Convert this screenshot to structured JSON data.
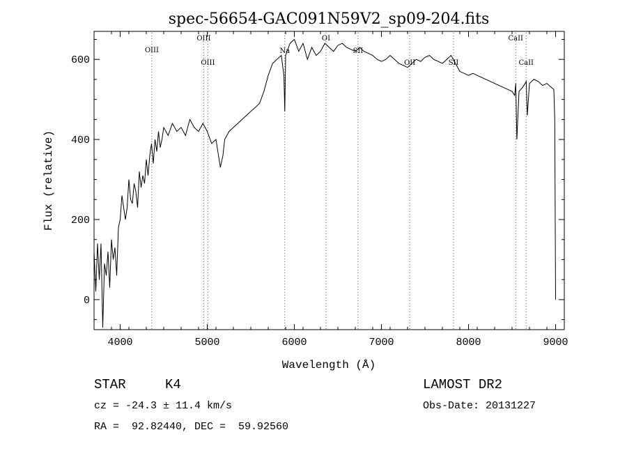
{
  "chart_data": {
    "type": "line",
    "title": "spec-56654-GAC091N59V2_sp09-204.fits",
    "xlabel": "Wavelength (Å)",
    "ylabel": "Flux (relative)",
    "xlim": [
      3700,
      9100
    ],
    "ylim": [
      -75,
      670
    ],
    "xticks": [
      4000,
      5000,
      6000,
      7000,
      8000,
      9000
    ],
    "xtick_labels": [
      "4000",
      "5000",
      "6000",
      "7000",
      "8000",
      "9000"
    ],
    "yticks": [
      0,
      200,
      400,
      600
    ],
    "ytick_labels": [
      "0",
      "200",
      "400",
      "600"
    ],
    "grid": false,
    "legend": "none",
    "series": [
      {
        "x": [
          3700,
          3720,
          3740,
          3760,
          3780,
          3800,
          3820,
          3840,
          3860,
          3880,
          3900,
          3920,
          3940,
          3960,
          3980,
          4000,
          4020,
          4040,
          4060,
          4080,
          4100,
          4120,
          4140,
          4160,
          4180,
          4200,
          4220,
          4240,
          4260,
          4280,
          4300,
          4320,
          4340,
          4360,
          4380,
          4400,
          4420,
          4440,
          4460,
          4480,
          4500,
          4550,
          4600,
          4650,
          4700,
          4750,
          4800,
          4850,
          4900,
          4950,
          5000,
          5050,
          5100,
          5150,
          5180,
          5200,
          5250,
          5300,
          5350,
          5400,
          5450,
          5500,
          5550,
          5600,
          5650,
          5700,
          5750,
          5800,
          5850,
          5880,
          5890,
          5900,
          5950,
          6000,
          6050,
          6100,
          6150,
          6200,
          6250,
          6300,
          6350,
          6400,
          6450,
          6500,
          6550,
          6600,
          6650,
          6700,
          6750,
          6800,
          6850,
          6900,
          6950,
          7000,
          7050,
          7100,
          7150,
          7200,
          7250,
          7300,
          7350,
          7400,
          7450,
          7500,
          7550,
          7600,
          7650,
          7700,
          7750,
          7800,
          7850,
          7900,
          7950,
          8000,
          8050,
          8100,
          8150,
          8200,
          8250,
          8300,
          8350,
          8400,
          8450,
          8500,
          8530,
          8542,
          8555,
          8580,
          8620,
          8650,
          8662,
          8675,
          8700,
          8750,
          8800,
          8850,
          8900,
          8950,
          8980,
          8990,
          9000
        ],
        "y": [
          120,
          20,
          140,
          50,
          140,
          -70,
          90,
          60,
          120,
          30,
          150,
          100,
          130,
          60,
          180,
          200,
          260,
          230,
          200,
          230,
          300,
          250,
          240,
          290,
          270,
          230,
          320,
          280,
          310,
          290,
          350,
          310,
          360,
          390,
          340,
          400,
          370,
          420,
          380,
          400,
          430,
          410,
          440,
          420,
          430,
          410,
          450,
          430,
          420,
          440,
          420,
          390,
          400,
          330,
          360,
          400,
          420,
          430,
          440,
          450,
          460,
          470,
          480,
          490,
          520,
          560,
          590,
          600,
          610,
          560,
          470,
          610,
          640,
          650,
          620,
          640,
          600,
          630,
          610,
          620,
          640,
          630,
          620,
          635,
          640,
          630,
          625,
          620,
          630,
          620,
          615,
          610,
          600,
          595,
          600,
          610,
          600,
          590,
          585,
          580,
          590,
          600,
          595,
          605,
          610,
          600,
          595,
          590,
          600,
          610,
          590,
          570,
          565,
          560,
          565,
          560,
          555,
          550,
          545,
          540,
          535,
          530,
          525,
          520,
          510,
          540,
          400,
          520,
          530,
          540,
          545,
          460,
          540,
          550,
          545,
          535,
          540,
          530,
          525,
          450,
          0
        ]
      }
    ],
    "line_markers": [
      {
        "label": "OIII",
        "wavelength": 4363
      },
      {
        "label": "OIII",
        "wavelength": 4959
      },
      {
        "label": "OIII",
        "wavelength": 5007
      },
      {
        "label": "Na",
        "wavelength": 5890
      },
      {
        "label": "OI",
        "wavelength": 6364
      },
      {
        "label": "SII",
        "wavelength": 6731
      },
      {
        "label": "OII",
        "wavelength": 7325
      },
      {
        "label": "SII",
        "wavelength": 7828
      },
      {
        "label": "CaII",
        "wavelength": 8542
      },
      {
        "label": "CaII",
        "wavelength": 8662
      }
    ]
  },
  "footer": {
    "class_label": "STAR",
    "subclass": "K4",
    "cz": "cz = -24.3 ± 11.4 km/s",
    "coords": "RA =  92.82440, DEC =  59.92560",
    "survey": "LAMOST DR2",
    "obs_date": "Obs-Date: 20131227"
  }
}
